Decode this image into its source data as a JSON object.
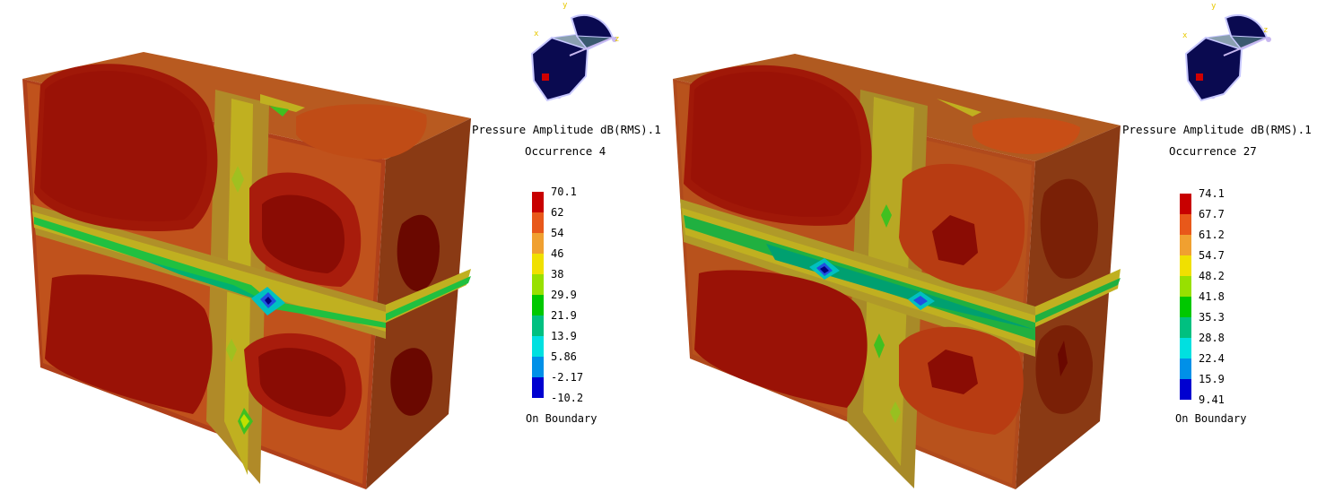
{
  "panels": [
    {
      "id": "left",
      "title": "Pressure Amplitude dB(RMS).1",
      "occurrence": "Occurrence 4",
      "boundary": "On Boundary",
      "scale": [
        "70.1",
        "62",
        "54",
        "46",
        "38",
        "29.9",
        "21.9",
        "13.9",
        "5.86",
        "-2.17",
        "-10.2"
      ],
      "axes": {
        "x": "x",
        "y": "y",
        "z": "z"
      }
    },
    {
      "id": "right",
      "title": "Pressure Amplitude dB(RMS).1",
      "occurrence": "Occurrence 27",
      "boundary": "On Boundary",
      "scale": [
        "74.1",
        "67.7",
        "61.2",
        "54.7",
        "48.2",
        "41.8",
        "35.3",
        "28.8",
        "22.4",
        "15.9",
        "9.41"
      ],
      "axes": {
        "x": "x",
        "y": "y",
        "z": "z"
      }
    }
  ],
  "colors": {
    "bands": [
      "#c80000",
      "#e8581a",
      "#f0a030",
      "#f0e000",
      "#98e000",
      "#00c800",
      "#00c080",
      "#00e0e0",
      "#0090e8",
      "#0000d0"
    ],
    "compass_fill": "#0a0a50",
    "axis_label": "#e8c800",
    "marker": "#d00000"
  }
}
